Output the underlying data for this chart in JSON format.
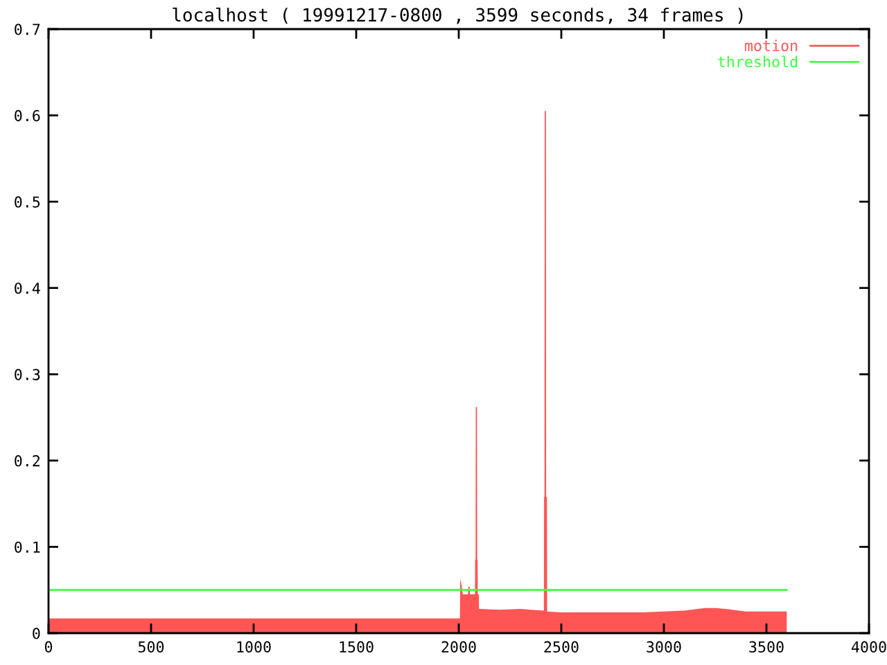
{
  "chart_data": {
    "type": "area",
    "title": "localhost ( 19991217-0800 , 3599 seconds, 34 frames )",
    "xlim": [
      0,
      4000
    ],
    "xticks": [
      0,
      500,
      1000,
      1500,
      2000,
      2500,
      3000,
      3500,
      4000
    ],
    "ylim": [
      0,
      0.7
    ],
    "yticks": [
      0,
      0.1,
      0.2,
      0.3,
      0.4,
      0.5,
      0.6,
      0.7
    ],
    "legend": "top right",
    "series": [
      {
        "name": "motion",
        "color": "#ff5555",
        "x": [
          0,
          500,
          1000,
          1500,
          2006,
          2007,
          2012,
          2020,
          2045,
          2047,
          2053,
          2055,
          2079,
          2080,
          2082,
          2083,
          2089,
          2090,
          2092,
          2093,
          2098,
          2099,
          2200,
          2300,
          2415,
          2416,
          2418,
          2419,
          2425,
          2426,
          2430,
          2431,
          2500,
          2700,
          2900,
          3000,
          3100,
          3200,
          3250,
          3300,
          3400,
          3599
        ],
        "values": [
          0.017,
          0.017,
          0.017,
          0.017,
          0.017,
          0.063,
          0.058,
          0.045,
          0.045,
          0.054,
          0.054,
          0.045,
          0.045,
          0.085,
          0.085,
          0.262,
          0.262,
          0.085,
          0.085,
          0.045,
          0.045,
          0.028,
          0.027,
          0.028,
          0.026,
          0.158,
          0.158,
          0.605,
          0.605,
          0.158,
          0.158,
          0.025,
          0.024,
          0.024,
          0.024,
          0.025,
          0.026,
          0.029,
          0.029,
          0.028,
          0.025,
          0.025
        ]
      },
      {
        "name": "threshold",
        "type": "line",
        "color": "#40ff40",
        "x": [
          0,
          3599
        ],
        "values": [
          0.05,
          0.05
        ]
      }
    ]
  }
}
